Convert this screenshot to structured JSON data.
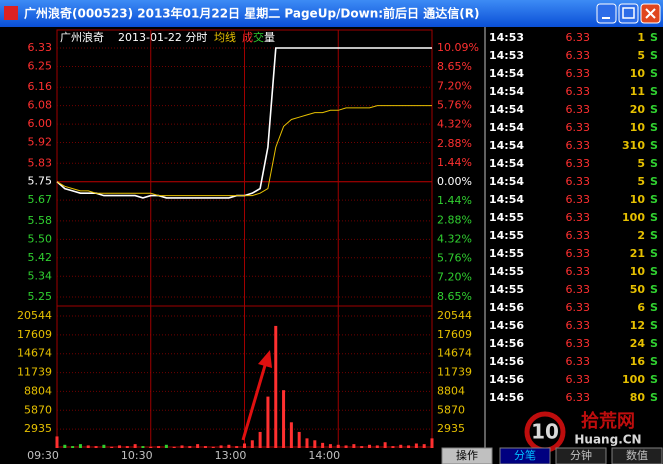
{
  "window": {
    "title": "广州浪奇(000523) 2013年01月22日 星期二 PageUp/Down:前后日 通达信(R)",
    "tabs": [
      "操作",
      "分笔",
      "分钟",
      "数值"
    ],
    "watermark": [
      "10",
      "拾荒网",
      "Huang.CN"
    ]
  },
  "chart_data": [
    {
      "type": "line",
      "title": "广州浪奇",
      "subtitle": "2013-01-22 分时",
      "categories": [
        "09:30",
        null,
        null,
        null,
        null,
        null,
        null,
        null,
        null,
        null,
        null,
        null,
        "10:30",
        null,
        null,
        null,
        null,
        null,
        null,
        null,
        null,
        null,
        null,
        null,
        "13:00",
        null,
        null,
        null,
        null,
        null,
        null,
        null,
        null,
        null,
        null,
        null,
        "14:00",
        null,
        null,
        null,
        null,
        null,
        null,
        null,
        null,
        null,
        null,
        null,
        null
      ],
      "series": [
        {
          "color": "#ffffff",
          "values": [
            5.75,
            5.72,
            5.71,
            5.7,
            5.7,
            5.7,
            5.69,
            5.69,
            5.69,
            5.69,
            5.69,
            5.68,
            5.69,
            5.69,
            5.68,
            5.68,
            5.68,
            5.68,
            5.68,
            5.68,
            5.68,
            5.68,
            5.68,
            5.69,
            5.69,
            5.7,
            5.72,
            5.9,
            6.33,
            6.33,
            6.33,
            6.33,
            6.33,
            6.33,
            6.33,
            6.33,
            6.33,
            6.33,
            6.33,
            6.33,
            6.33,
            6.33,
            6.33,
            6.33,
            6.33,
            6.33,
            6.33,
            6.33,
            6.33
          ]
        },
        {
          "name": "均线",
          "color": "#e6c000",
          "values": [
            5.75,
            5.73,
            5.72,
            5.71,
            5.71,
            5.7,
            5.7,
            5.7,
            5.7,
            5.7,
            5.7,
            5.7,
            5.7,
            5.69,
            5.69,
            5.69,
            5.69,
            5.69,
            5.69,
            5.69,
            5.69,
            5.69,
            5.69,
            5.69,
            5.69,
            5.69,
            5.7,
            5.72,
            5.9,
            5.99,
            6.02,
            6.03,
            6.04,
            6.05,
            6.05,
            6.06,
            6.06,
            6.07,
            6.07,
            6.07,
            6.07,
            6.08,
            6.08,
            6.08,
            6.08,
            6.08,
            6.08,
            6.08,
            6.08
          ]
        }
      ],
      "ylim": [
        5.25,
        6.33
      ],
      "yticks": [
        6.33,
        6.25,
        6.16,
        6.08,
        {
          "value": 6,
          "label": "6.00"
        },
        5.92,
        5.83,
        5.75,
        5.67,
        5.58,
        {
          "value": 5.5,
          "label": "5.50"
        },
        5.42,
        5.34,
        5.25
      ],
      "y2lim": [
        -8.65,
        10.09
      ],
      "y2ticks": [
        {
          "value": 10.09,
          "label": "10.09%"
        },
        {
          "value": 8.65,
          "label": "8.65%"
        },
        {
          "value": 7.2,
          "label": "7.20%"
        },
        {
          "value": 5.76,
          "label": "5.76%"
        },
        {
          "value": 4.32,
          "label": "4.32%"
        },
        {
          "value": 2.88,
          "label": "2.88%"
        },
        {
          "value": 1.44,
          "label": "1.44%"
        },
        {
          "value": 0,
          "label": "0.00%"
        },
        {
          "value": -1.44,
          "label": "1.44%"
        },
        {
          "value": -2.88,
          "label": "2.88%"
        },
        {
          "value": -4.32,
          "label": "4.32%"
        },
        {
          "value": -5.76,
          "label": "5.76%"
        },
        {
          "value": -7.2,
          "label": "7.20%"
        },
        {
          "value": -8.65,
          "label": "8.65%"
        }
      ],
      "grid": true
    },
    {
      "type": "bar",
      "series": [
        {
          "name": "成交量",
          "values": [
            1800,
            500,
            300,
            600,
            400,
            300,
            500,
            200,
            400,
            300,
            600,
            300,
            200,
            300,
            500,
            200,
            400,
            300,
            600,
            300,
            200,
            400,
            500,
            300,
            700,
            1200,
            2500,
            8000,
            19000,
            9000,
            4000,
            2500,
            1500,
            1200,
            800,
            600,
            500,
            400,
            600,
            300,
            500,
            400,
            900,
            300,
            500,
            400,
            700,
            600,
            1500
          ]
        }
      ],
      "ylim": [
        0,
        20544
      ],
      "yticks": [
        20544,
        17609,
        14674,
        11739,
        8804,
        5870,
        2935
      ],
      "grid": true
    }
  ],
  "tick_table": {
    "rows": [
      [
        "14:53",
        6.33,
        1,
        "S"
      ],
      [
        "14:53",
        6.33,
        5,
        "S"
      ],
      [
        "14:54",
        6.33,
        10,
        "S"
      ],
      [
        "14:54",
        6.33,
        11,
        "S"
      ],
      [
        "14:54",
        6.33,
        20,
        "S"
      ],
      [
        "14:54",
        6.33,
        10,
        "S"
      ],
      [
        "14:54",
        6.33,
        310,
        "S"
      ],
      [
        "14:54",
        6.33,
        5,
        "S"
      ],
      [
        "14:54",
        6.33,
        5,
        "S"
      ],
      [
        "14:54",
        6.33,
        10,
        "S"
      ],
      [
        "14:55",
        6.33,
        100,
        "S"
      ],
      [
        "14:55",
        6.33,
        2,
        "S"
      ],
      [
        "14:55",
        6.33,
        21,
        "S"
      ],
      [
        "14:55",
        6.33,
        10,
        "S"
      ],
      [
        "14:55",
        6.33,
        50,
        "S"
      ],
      [
        "14:56",
        6.33,
        6,
        "S"
      ],
      [
        "14:56",
        6.33,
        12,
        "S"
      ],
      [
        "14:56",
        6.33,
        24,
        "S"
      ],
      [
        "14:56",
        6.33,
        16,
        "S"
      ],
      [
        "14:56",
        6.33,
        100,
        "S"
      ],
      [
        "14:56",
        6.33,
        80,
        "S"
      ]
    ]
  }
}
